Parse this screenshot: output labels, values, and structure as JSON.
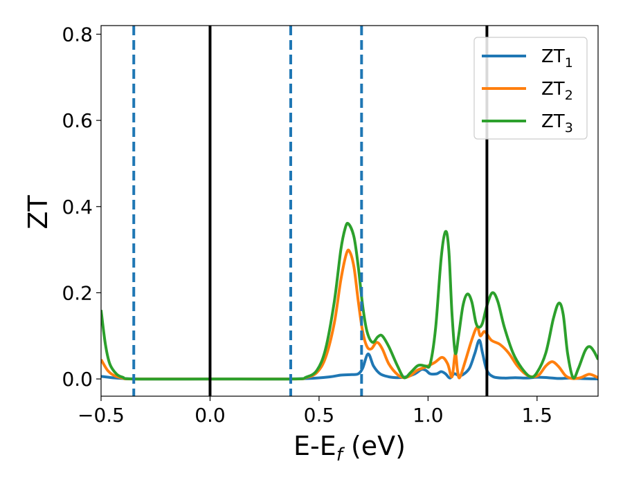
{
  "chart_data": {
    "type": "line",
    "title": "",
    "xlabel": "E-E_f (eV)",
    "xlabel_parts": {
      "main": "E-E",
      "sub": "f",
      "rest": " (eV)"
    },
    "ylabel": "ZT",
    "xlim": [
      -0.5,
      1.78
    ],
    "ylim": [
      -0.04,
      0.82
    ],
    "xticks": [
      -0.5,
      0.0,
      0.5,
      1.0,
      1.5
    ],
    "xtick_labels": [
      "−0.5",
      "0.0",
      "0.5",
      "1.0",
      "1.5"
    ],
    "yticks": [
      0.0,
      0.2,
      0.4,
      0.6,
      0.8
    ],
    "ytick_labels": [
      "0.0",
      "0.2",
      "0.4",
      "0.6",
      "0.8"
    ],
    "grid": false,
    "legend_position": "top-right",
    "vlines_solid": [
      0.0,
      1.27
    ],
    "vlines_dashed": [
      -0.35,
      0.37,
      0.695
    ],
    "vline_solid_color": "#000000",
    "vline_dashed_color": "#1f77b4",
    "series": [
      {
        "name": "ZT1",
        "legend_main": "ZT",
        "legend_sub": "1",
        "color": "#1f77b4",
        "points": [
          [
            -0.5,
            0.006
          ],
          [
            -0.45,
            0.003
          ],
          [
            -0.4,
            0.001
          ],
          [
            -0.3,
            0.0
          ],
          [
            0.0,
            0.0
          ],
          [
            0.3,
            0.0
          ],
          [
            0.45,
            0.001
          ],
          [
            0.55,
            0.005
          ],
          [
            0.6,
            0.009
          ],
          [
            0.65,
            0.01
          ],
          [
            0.68,
            0.012
          ],
          [
            0.7,
            0.025
          ],
          [
            0.725,
            0.058
          ],
          [
            0.75,
            0.03
          ],
          [
            0.78,
            0.012
          ],
          [
            0.82,
            0.005
          ],
          [
            0.86,
            0.003
          ],
          [
            0.9,
            0.005
          ],
          [
            0.94,
            0.012
          ],
          [
            0.97,
            0.022
          ],
          [
            0.99,
            0.02
          ],
          [
            1.01,
            0.012
          ],
          [
            1.04,
            0.012
          ],
          [
            1.06,
            0.017
          ],
          [
            1.08,
            0.012
          ],
          [
            1.1,
            0.002
          ],
          [
            1.12,
            0.012
          ],
          [
            1.14,
            0.008
          ],
          [
            1.16,
            0.01
          ],
          [
            1.19,
            0.025
          ],
          [
            1.215,
            0.06
          ],
          [
            1.235,
            0.09
          ],
          [
            1.25,
            0.06
          ],
          [
            1.27,
            0.02
          ],
          [
            1.3,
            0.005
          ],
          [
            1.35,
            0.002
          ],
          [
            1.4,
            0.003
          ],
          [
            1.45,
            0.002
          ],
          [
            1.5,
            0.004
          ],
          [
            1.55,
            0.003
          ],
          [
            1.6,
            0.001
          ],
          [
            1.65,
            0.002
          ],
          [
            1.7,
            0.001
          ],
          [
            1.78,
            0.0
          ]
        ]
      },
      {
        "name": "ZT2",
        "legend_main": "ZT",
        "legend_sub": "2",
        "color": "#ff7f0e",
        "points": [
          [
            -0.5,
            0.045
          ],
          [
            -0.47,
            0.02
          ],
          [
            -0.44,
            0.008
          ],
          [
            -0.4,
            0.002
          ],
          [
            -0.35,
            0.0
          ],
          [
            0.0,
            0.0
          ],
          [
            0.38,
            0.0
          ],
          [
            0.44,
            0.003
          ],
          [
            0.49,
            0.015
          ],
          [
            0.53,
            0.05
          ],
          [
            0.57,
            0.13
          ],
          [
            0.6,
            0.23
          ],
          [
            0.625,
            0.29
          ],
          [
            0.64,
            0.296
          ],
          [
            0.66,
            0.26
          ],
          [
            0.68,
            0.18
          ],
          [
            0.7,
            0.11
          ],
          [
            0.72,
            0.075
          ],
          [
            0.74,
            0.07
          ],
          [
            0.765,
            0.085
          ],
          [
            0.79,
            0.07
          ],
          [
            0.82,
            0.035
          ],
          [
            0.86,
            0.01
          ],
          [
            0.89,
            0.003
          ],
          [
            0.92,
            0.008
          ],
          [
            0.95,
            0.02
          ],
          [
            0.99,
            0.028
          ],
          [
            1.03,
            0.038
          ],
          [
            1.065,
            0.05
          ],
          [
            1.09,
            0.035
          ],
          [
            1.11,
            0.005
          ],
          [
            1.125,
            0.06
          ],
          [
            1.135,
            0.02
          ],
          [
            1.145,
            0.003
          ],
          [
            1.17,
            0.04
          ],
          [
            1.2,
            0.09
          ],
          [
            1.225,
            0.12
          ],
          [
            1.24,
            0.1
          ],
          [
            1.26,
            0.11
          ],
          [
            1.29,
            0.09
          ],
          [
            1.33,
            0.08
          ],
          [
            1.37,
            0.06
          ],
          [
            1.41,
            0.03
          ],
          [
            1.45,
            0.01
          ],
          [
            1.48,
            0.005
          ],
          [
            1.51,
            0.01
          ],
          [
            1.54,
            0.03
          ],
          [
            1.57,
            0.04
          ],
          [
            1.6,
            0.028
          ],
          [
            1.63,
            0.008
          ],
          [
            1.66,
            0.001
          ],
          [
            1.7,
            0.003
          ],
          [
            1.74,
            0.011
          ],
          [
            1.78,
            0.003
          ]
        ]
      },
      {
        "name": "ZT3",
        "legend_main": "ZT",
        "legend_sub": "3",
        "color": "#2ca02c",
        "points": [
          [
            -0.5,
            0.16
          ],
          [
            -0.48,
            0.08
          ],
          [
            -0.46,
            0.035
          ],
          [
            -0.43,
            0.012
          ],
          [
            -0.4,
            0.004
          ],
          [
            -0.35,
            0.0
          ],
          [
            0.0,
            0.0
          ],
          [
            0.38,
            0.0
          ],
          [
            0.44,
            0.004
          ],
          [
            0.49,
            0.02
          ],
          [
            0.53,
            0.07
          ],
          [
            0.57,
            0.18
          ],
          [
            0.6,
            0.3
          ],
          [
            0.62,
            0.35
          ],
          [
            0.635,
            0.36
          ],
          [
            0.66,
            0.33
          ],
          [
            0.68,
            0.26
          ],
          [
            0.7,
            0.17
          ],
          [
            0.72,
            0.11
          ],
          [
            0.745,
            0.085
          ],
          [
            0.77,
            0.098
          ],
          [
            0.79,
            0.1
          ],
          [
            0.82,
            0.075
          ],
          [
            0.86,
            0.03
          ],
          [
            0.89,
            0.003
          ],
          [
            0.92,
            0.015
          ],
          [
            0.95,
            0.03
          ],
          [
            0.97,
            0.032
          ],
          [
            0.99,
            0.03
          ],
          [
            1.01,
            0.035
          ],
          [
            1.035,
            0.12
          ],
          [
            1.06,
            0.28
          ],
          [
            1.08,
            0.342
          ],
          [
            1.095,
            0.3
          ],
          [
            1.11,
            0.15
          ],
          [
            1.125,
            0.06
          ],
          [
            1.14,
            0.1
          ],
          [
            1.16,
            0.17
          ],
          [
            1.18,
            0.197
          ],
          [
            1.2,
            0.18
          ],
          [
            1.22,
            0.13
          ],
          [
            1.235,
            0.12
          ],
          [
            1.25,
            0.13
          ],
          [
            1.27,
            0.17
          ],
          [
            1.295,
            0.2
          ],
          [
            1.32,
            0.18
          ],
          [
            1.35,
            0.12
          ],
          [
            1.39,
            0.06
          ],
          [
            1.43,
            0.025
          ],
          [
            1.47,
            0.005
          ],
          [
            1.5,
            0.015
          ],
          [
            1.54,
            0.06
          ],
          [
            1.575,
            0.14
          ],
          [
            1.6,
            0.176
          ],
          [
            1.62,
            0.15
          ],
          [
            1.64,
            0.06
          ],
          [
            1.665,
            0.003
          ],
          [
            1.69,
            0.025
          ],
          [
            1.72,
            0.065
          ],
          [
            1.74,
            0.075
          ],
          [
            1.76,
            0.065
          ],
          [
            1.78,
            0.045
          ]
        ]
      }
    ]
  }
}
